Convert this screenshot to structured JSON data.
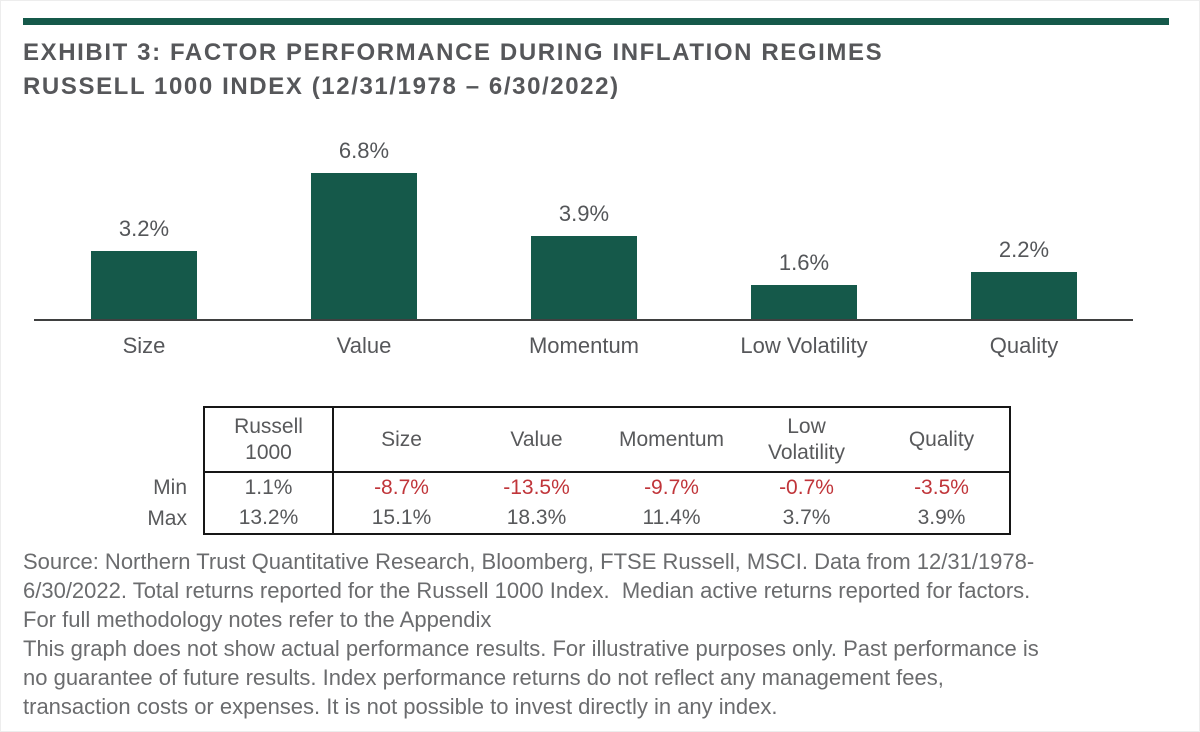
{
  "page": {
    "background": "#FFFFFF",
    "accent_green": "#15594A",
    "negative_red": "#C0353A",
    "heading_gray": "#56575A",
    "body_gray": "#6B6C6E"
  },
  "header": {
    "title_line1": "EXHIBIT 3: FACTOR PERFORMANCE DURING INFLATION REGIMES",
    "title_line2": "RUSSELL 1000 INDEX (12/31/1978 – 6/30/2022)"
  },
  "chart_data": {
    "type": "bar",
    "title": "EXHIBIT 3: FACTOR PERFORMANCE DURING INFLATION REGIMES",
    "subtitle": "RUSSELL 1000 INDEX (12/31/1978 – 6/30/2022)",
    "categories": [
      "Size",
      "Value",
      "Momentum",
      "Low Volatility",
      "Quality"
    ],
    "values": [
      3.2,
      6.8,
      3.9,
      1.6,
      2.2
    ],
    "value_labels": [
      "3.2%",
      "6.8%",
      "3.9%",
      "1.6%",
      "2.2%"
    ],
    "bar_color": "#15594A",
    "xlabel": "",
    "ylabel": "",
    "ylim": [
      0,
      7.5
    ],
    "grid": false,
    "legend": "none"
  },
  "table": {
    "corner_header": "Russell 1000",
    "factor_headers": [
      "Size",
      "Value",
      "Momentum",
      "Low Volatility",
      "Quality"
    ],
    "rows": [
      {
        "label": "Min",
        "russell": "1.1%",
        "values": [
          "-8.7%",
          "-13.5%",
          "-9.7%",
          "-0.7%",
          "-3.5%"
        ]
      },
      {
        "label": "Max",
        "russell": "13.2%",
        "values": [
          "15.1%",
          "18.3%",
          "11.4%",
          "3.7%",
          "3.9%"
        ]
      }
    ]
  },
  "footer": {
    "source_lines": [
      "Source: Northern Trust Quantitative Research, Bloomberg, FTSE Russell, MSCI. Data from 12/31/1978-",
      "6/30/2022. Total returns reported for the Russell 1000 Index.  Median active returns reported for factors.",
      "For full methodology notes refer to the Appendix"
    ],
    "disclaimer_lines": [
      "This graph does not show actual performance results. For illustrative purposes only. Past performance is",
      "no guarantee of future results. Index performance returns do not reflect any management fees,",
      "transaction costs or expenses. It is not possible to invest directly in any index."
    ]
  }
}
